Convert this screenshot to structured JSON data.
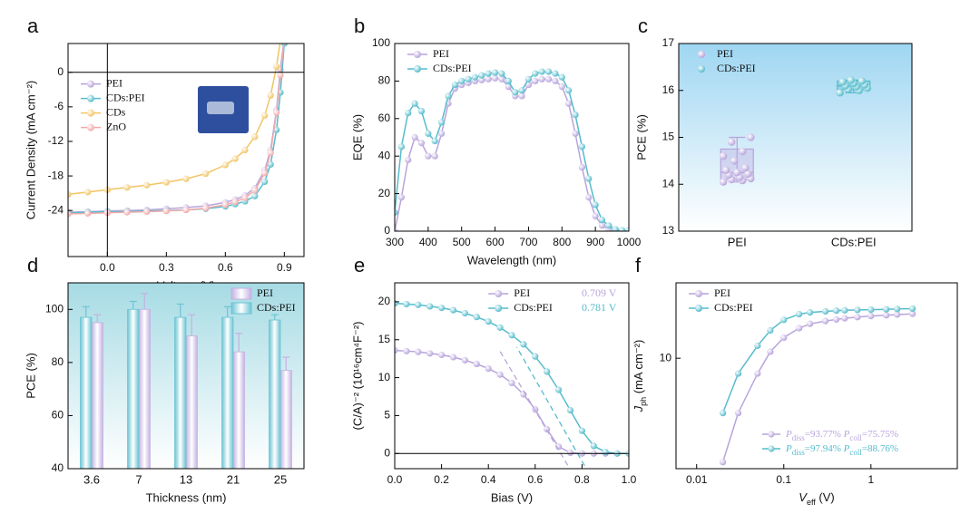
{
  "chart_data": [
    {
      "type": "line",
      "panel_label": "a",
      "xlabel": "Voltage (V)",
      "ylabel": "Current Density (mA cm⁻²)",
      "x": [
        -0.2,
        -0.1,
        0,
        0.1,
        0.2,
        0.3,
        0.4,
        0.5,
        0.6,
        0.65,
        0.7,
        0.75,
        0.8,
        0.83,
        0.86,
        0.88,
        0.9
      ],
      "series": [
        {
          "name": "PEI",
          "color": "#b8a4dc",
          "values": [
            -24.3,
            -24.2,
            -24.1,
            -24.0,
            -23.9,
            -23.7,
            -23.5,
            -23.2,
            -22.6,
            -22.1,
            -21.4,
            -20.1,
            -17.0,
            -13.5,
            -6.5,
            0.5,
            6
          ]
        },
        {
          "name": "CDs:PEI",
          "color": "#56bccc",
          "values": [
            -24.4,
            -24.3,
            -24.2,
            -24.2,
            -24.1,
            -24.0,
            -23.9,
            -23.7,
            -23.3,
            -22.9,
            -22.4,
            -21.5,
            -19.0,
            -16.0,
            -10.0,
            -3.5,
            5.0
          ]
        },
        {
          "name": "CDs",
          "color": "#f2c463",
          "values": [
            -21.2,
            -20.8,
            -20.4,
            -20.0,
            -19.6,
            -19.1,
            -18.5,
            -17.6,
            -16.1,
            -15.0,
            -13.5,
            -11.2,
            -7.5,
            -4.0,
            1.0,
            5.5,
            9
          ]
        },
        {
          "name": "ZnO",
          "color": "#f2a9a9",
          "values": [
            -24.6,
            -24.5,
            -24.4,
            -24.3,
            -24.2,
            -24.1,
            -23.9,
            -23.6,
            -23.0,
            -22.5,
            -21.8,
            -20.5,
            -17.5,
            -14.0,
            -7.0,
            -0.5,
            5.5
          ]
        }
      ],
      "xlim": [
        -0.2,
        1.0
      ],
      "xticks": [
        {
          "value": 0,
          "label": "0.0"
        },
        0.3,
        0.6,
        0.9
      ],
      "ylim": [
        -32,
        5
      ],
      "yticks": [
        0,
        -6,
        -12,
        -18,
        -24
      ],
      "zero_lines": true,
      "legend": "center left"
    },
    {
      "type": "line",
      "panel_label": "b",
      "xlabel": "Wavelength (nm)",
      "ylabel": "EQE (%)",
      "x": [
        300,
        320,
        340,
        360,
        380,
        400,
        420,
        440,
        460,
        480,
        500,
        520,
        540,
        560,
        580,
        600,
        620,
        640,
        660,
        680,
        700,
        720,
        740,
        760,
        780,
        800,
        820,
        840,
        860,
        880,
        900,
        920,
        940,
        960,
        980,
        1000
      ],
      "series": [
        {
          "name": "PEI",
          "color": "#b8a4dc",
          "values": [
            0,
            18,
            38,
            50,
            47,
            40,
            40,
            52,
            68,
            76,
            78,
            79,
            80,
            80.5,
            81,
            81.5,
            81,
            77,
            72,
            72,
            78,
            80,
            81,
            81,
            80,
            77,
            68,
            52,
            34,
            18,
            8,
            3,
            1,
            0.5,
            0.2,
            0.1
          ]
        },
        {
          "name": "CDs:PEI",
          "color": "#56bccc",
          "values": [
            10,
            45,
            63,
            68,
            64,
            52,
            48,
            58,
            72,
            78,
            80,
            81,
            82,
            83,
            84,
            84.5,
            84,
            80,
            74,
            75,
            81,
            84,
            85,
            85,
            84,
            82,
            75,
            62,
            45,
            28,
            14,
            6,
            3,
            1,
            0.5,
            0.3
          ]
        }
      ],
      "xlim": [
        300,
        1000
      ],
      "xticks": [
        300,
        400,
        500,
        600,
        700,
        800,
        900,
        1000
      ],
      "ylim": [
        0,
        100
      ],
      "yticks": [
        0,
        20,
        40,
        60,
        80,
        100
      ],
      "legend": "upper left"
    },
    {
      "type": "box",
      "panel_label": "c",
      "ylabel": "PCE (%)",
      "categories": [
        "PEI",
        "CDs:PEI"
      ],
      "series": [
        {
          "name": "PEI",
          "color": "#b8a4dc",
          "points": [
            14.05,
            14.08,
            14.1,
            14.12,
            14.15,
            14.2,
            14.22,
            14.25,
            14.3,
            14.35,
            14.5,
            14.6,
            14.7,
            14.9,
            15.0
          ],
          "box": {
            "min": 14.05,
            "q1": 14.1,
            "median": 14.25,
            "q3": 14.75,
            "max": 15.0
          }
        },
        {
          "name": "CDs:PEI",
          "color": "#56bccc",
          "points": [
            15.95,
            16.0,
            16.02,
            16.05,
            16.08,
            16.1,
            16.12,
            16.15,
            16.18,
            16.2,
            16.22
          ],
          "box": {
            "min": 15.95,
            "q1": 16.02,
            "median": 16.1,
            "q3": 16.2,
            "max": 16.22
          }
        }
      ],
      "ylim": [
        13,
        17
      ],
      "yticks": [
        13,
        14,
        15,
        16,
        17
      ],
      "legend": "upper left",
      "background": [
        "#9fd6f2",
        "#ffffff"
      ]
    },
    {
      "type": "bar",
      "panel_label": "d",
      "xlabel": "Thickness (nm)",
      "ylabel": "PCE (%)",
      "categories": [
        "3.6",
        "7",
        "13",
        "21",
        "25"
      ],
      "series": [
        {
          "name": "PEI",
          "color": "#c4b2e2",
          "values": [
            95,
            100,
            90,
            84,
            77
          ],
          "errors": [
            3,
            6,
            8,
            7,
            5
          ]
        },
        {
          "name": "CDs:PEI",
          "color": "#6cc4d4",
          "values": [
            97,
            100,
            97,
            97,
            96
          ],
          "errors": [
            4,
            3,
            5,
            4,
            2
          ]
        }
      ],
      "ylim": [
        40,
        110
      ],
      "yticks": [
        40,
        60,
        80,
        100
      ],
      "legend": "upper right",
      "background": [
        "#a6dbe4",
        "#ffffff"
      ]
    },
    {
      "type": "line",
      "panel_label": "e",
      "xlabel": "Bias (V)",
      "ylabel": "(C/A)⁻² (10¹⁶cm⁴F⁻²)",
      "x": [
        0,
        0.05,
        0.1,
        0.15,
        0.2,
        0.25,
        0.3,
        0.35,
        0.4,
        0.45,
        0.5,
        0.55,
        0.6,
        0.65,
        0.7,
        0.75,
        0.8,
        0.85,
        0.9,
        0.95,
        1.0
      ],
      "series": [
        {
          "name": "PEI",
          "color": "#b8a4dc",
          "values": [
            13.6,
            13.5,
            13.4,
            13.2,
            13.0,
            12.7,
            12.3,
            11.8,
            11.2,
            10.4,
            9.3,
            7.8,
            5.8,
            3.2,
            0.9,
            0.1,
            0,
            0,
            0,
            0,
            0
          ],
          "intercept": 0.709,
          "intercept_label": "0.709 V"
        },
        {
          "name": "CDs:PEI",
          "color": "#56bccc",
          "values": [
            19.8,
            19.7,
            19.6,
            19.4,
            19.2,
            18.9,
            18.5,
            18.0,
            17.4,
            16.6,
            15.6,
            14.4,
            12.8,
            10.8,
            8.4,
            5.7,
            3.0,
            1.0,
            0.2,
            0,
            0
          ],
          "intercept": 0.781,
          "intercept_label": "0.781 V"
        }
      ],
      "xlim": [
        0,
        1.0
      ],
      "xticks": [
        {
          "value": 0,
          "label": "0.0"
        },
        0.2,
        0.4,
        0.6,
        0.8,
        {
          "value": 1.0,
          "label": "1.0"
        }
      ],
      "ylim": [
        -2,
        22.5
      ],
      "yticks": [
        0,
        5,
        10,
        15,
        20
      ],
      "zero_lines": true,
      "legend": "upper center"
    },
    {
      "type": "line",
      "panel_label": "f",
      "xlabel": [
        {
          "text": "V",
          "italic": true
        },
        {
          "text": "eff",
          "sub": true
        },
        {
          "text": " (V)"
        }
      ],
      "ylabel": [
        {
          "text": "J",
          "italic": true
        },
        {
          "text": "ph",
          "sub": true
        },
        {
          "text": " (mA cm⁻²)"
        }
      ],
      "x": [
        0.02,
        0.03,
        0.05,
        0.07,
        0.1,
        0.15,
        0.2,
        0.3,
        0.4,
        0.5,
        0.7,
        1,
        1.5,
        2,
        3
      ],
      "series": [
        {
          "name": "PEI",
          "color": "#b8a4dc",
          "values": [
            2.2,
            4.5,
            8,
            11,
            13.5,
            15.5,
            16.5,
            17.2,
            17.6,
            17.9,
            18.2,
            18.5,
            18.7,
            18.9,
            19.1
          ]
        },
        {
          "name": "CDs:PEI",
          "color": "#56bccc",
          "values": [
            4.5,
            8,
            12,
            15,
            17.5,
            19,
            19.5,
            19.8,
            20,
            20.1,
            20.2,
            20.3,
            20.4,
            20.5,
            20.6
          ]
        }
      ],
      "xlim": [
        0.0058,
        9.8
      ],
      "xticks": [
        0.01,
        0.1,
        1
      ],
      "xlog": true,
      "ylim": [
        2.0,
        30
      ],
      "yticks": [
        10
      ],
      "ylog": true,
      "legend": "upper left",
      "annotations": [
        {
          "color": "#b8a4dc",
          "segments": [
            {
              "text": "P",
              "italic": true
            },
            {
              "text": "diss",
              "sub": true
            },
            {
              "text": "=93.77% "
            },
            {
              "text": "P",
              "italic": true
            },
            {
              "text": "coll",
              "sub": true
            },
            {
              "text": "=75.75%"
            }
          ]
        },
        {
          "color": "#56bccc",
          "segments": [
            {
              "text": "P",
              "italic": true
            },
            {
              "text": "diss",
              "sub": true
            },
            {
              "text": "=97.94% "
            },
            {
              "text": "P",
              "italic": true
            },
            {
              "text": "coll",
              "sub": true
            },
            {
              "text": "=88.76%"
            }
          ]
        }
      ]
    }
  ]
}
